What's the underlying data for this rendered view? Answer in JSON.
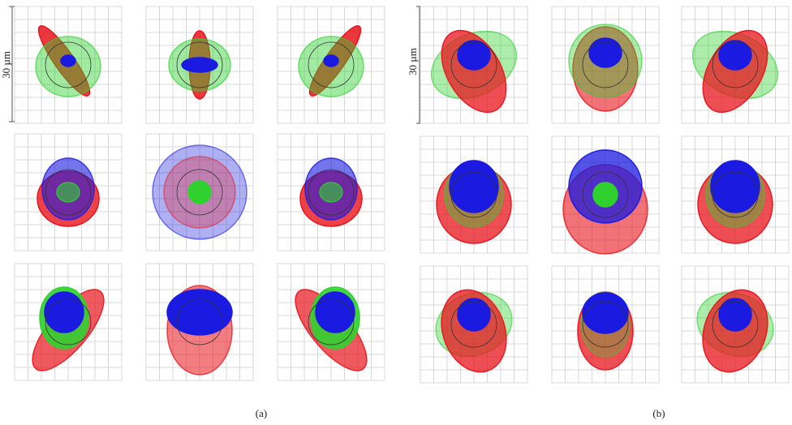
{
  "figure": {
    "panels": [
      {
        "label": "(a)",
        "scale": "30 µm"
      },
      {
        "label": "(b)",
        "scale": "30 µm"
      }
    ]
  }
}
